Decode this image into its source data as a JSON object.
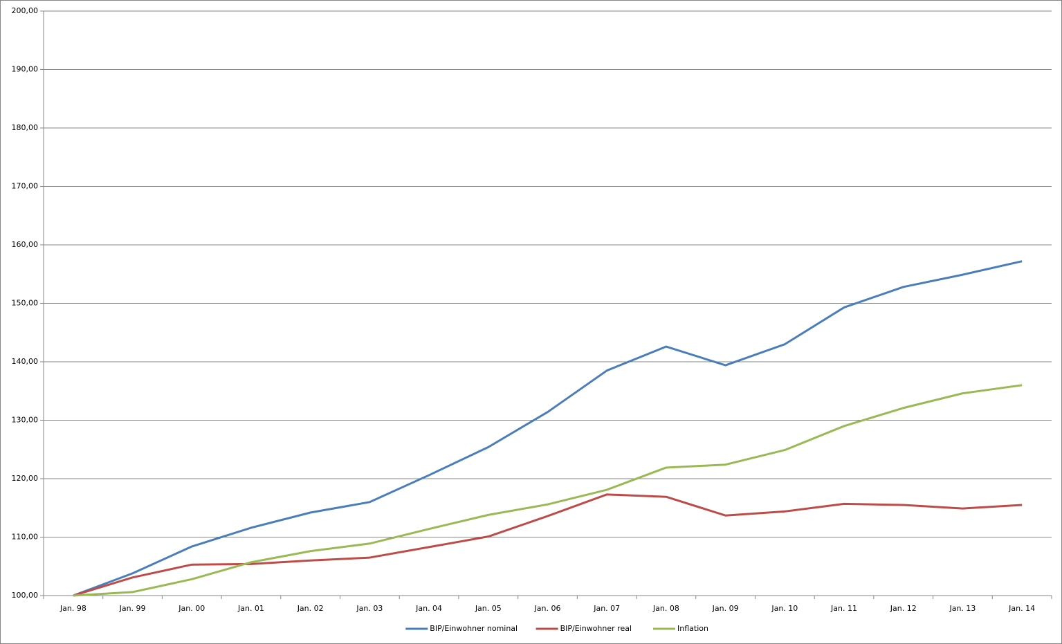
{
  "chart_data": {
    "type": "line",
    "categories": [
      "Jan. 98",
      "Jan. 99",
      "Jan. 00",
      "Jan. 01",
      "Jan. 02",
      "Jan. 03",
      "Jan. 04",
      "Jan. 05",
      "Jan. 06",
      "Jan. 07",
      "Jan. 08",
      "Jan. 09",
      "Jan. 10",
      "Jan. 11",
      "Jan. 12",
      "Jan. 13",
      "Jan. 14"
    ],
    "series": [
      {
        "name": "BIP/Einwohner nominal",
        "color": "#4a7ebb",
        "values": [
          100,
          103.8,
          108.4,
          111.6,
          114.2,
          116.0,
          120.6,
          125.4,
          131.4,
          138.5,
          142.6,
          139.4,
          143.0,
          149.3,
          152.8,
          154.9,
          157.2
        ]
      },
      {
        "name": "BIP/Einwohner real",
        "color": "#be4b48",
        "values": [
          100,
          103.1,
          105.3,
          105.4,
          106.0,
          106.5,
          108.3,
          110.1,
          113.6,
          117.3,
          116.9,
          113.7,
          114.4,
          115.7,
          115.5,
          114.9,
          115.5
        ]
      },
      {
        "name": "Inflation",
        "color": "#98b954",
        "values": [
          100,
          100.6,
          102.8,
          105.7,
          107.6,
          108.9,
          111.4,
          113.8,
          115.6,
          118.1,
          121.9,
          122.4,
          124.9,
          129.0,
          132.1,
          134.6,
          136.0
        ]
      }
    ],
    "ylim": [
      100,
      200
    ],
    "yticks": [
      {
        "value": 100,
        "label": "100,00"
      },
      {
        "value": 110,
        "label": "110,00"
      },
      {
        "value": 120,
        "label": "120,00"
      },
      {
        "value": 130,
        "label": "130,00"
      },
      {
        "value": 140,
        "label": "140,00"
      },
      {
        "value": 150,
        "label": "150,00"
      },
      {
        "value": 160,
        "label": "160,00"
      },
      {
        "value": 170,
        "label": "170,00"
      },
      {
        "value": 180,
        "label": "180,00"
      },
      {
        "value": 190,
        "label": "190,00"
      },
      {
        "value": 200,
        "label": "200,00"
      }
    ],
    "grid": true,
    "legend": "bottom"
  }
}
